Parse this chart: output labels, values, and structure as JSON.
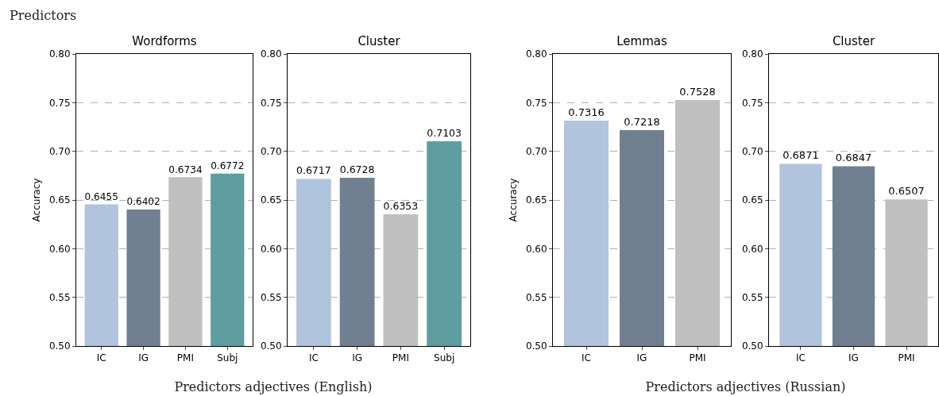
{
  "chart_data": [
    {
      "type": "bar",
      "title": "Wordforms",
      "ylabel": "Accuracy",
      "categories": [
        "IC",
        "IG",
        "PMI",
        "Subj"
      ],
      "values": [
        0.6455,
        0.6402,
        0.6734,
        0.6772
      ],
      "colors": [
        "#b0c4de",
        "#708090",
        "#c0c0c0",
        "#5f9ea0"
      ],
      "ylim": [
        0.5,
        0.8
      ],
      "yticks": [
        {
          "value": 0.5,
          "label": "0.50"
        },
        {
          "value": 0.55,
          "label": "0.55"
        },
        {
          "value": 0.6,
          "label": "0.60"
        },
        {
          "value": 0.65,
          "label": "0.65"
        },
        {
          "value": 0.7,
          "label": "0.70"
        },
        {
          "value": 0.75,
          "label": "0.75"
        },
        {
          "value": 0.8,
          "label": "0.80"
        }
      ],
      "grid": "y",
      "data_labels": true,
      "annotations": [
        "Predictors",
        "Predictors adjectives (English)"
      ]
    },
    {
      "type": "bar",
      "title": "Cluster",
      "categories": [
        "IC",
        "IG",
        "PMI",
        "Subj"
      ],
      "values": [
        0.6717,
        0.6728,
        0.6353,
        0.7103
      ],
      "colors": [
        "#b0c4de",
        "#708090",
        "#c0c0c0",
        "#5f9ea0"
      ],
      "ylim": [
        0.5,
        0.8
      ],
      "yticks": [
        {
          "value": 0.5,
          "label": "0.50"
        },
        {
          "value": 0.55,
          "label": "0.55"
        },
        {
          "value": 0.6,
          "label": "0.60"
        },
        {
          "value": 0.65,
          "label": "0.65"
        },
        {
          "value": 0.7,
          "label": "0.70"
        },
        {
          "value": 0.75,
          "label": "0.75"
        },
        {
          "value": 0.8,
          "label": "0.80"
        }
      ],
      "grid": "y",
      "data_labels": true
    },
    {
      "type": "bar",
      "title": "Lemmas",
      "ylabel": "Accuracy",
      "categories": [
        "IC",
        "IG",
        "PMI"
      ],
      "values": [
        0.7316,
        0.7218,
        0.7528
      ],
      "colors": [
        "#b0c4de",
        "#708090",
        "#c0c0c0"
      ],
      "ylim": [
        0.5,
        0.8
      ],
      "yticks": [
        {
          "value": 0.5,
          "label": "0.50"
        },
        {
          "value": 0.55,
          "label": "0.55"
        },
        {
          "value": 0.6,
          "label": "0.60"
        },
        {
          "value": 0.65,
          "label": "0.65"
        },
        {
          "value": 0.7,
          "label": "0.70"
        },
        {
          "value": 0.75,
          "label": "0.75"
        },
        {
          "value": 0.8,
          "label": "0.80"
        }
      ],
      "grid": "y",
      "data_labels": true,
      "annotations": [
        "Predictors adjectives (Russian)"
      ]
    },
    {
      "type": "bar",
      "title": "Cluster",
      "categories": [
        "IC",
        "IG",
        "PMI"
      ],
      "values": [
        0.6871,
        0.6847,
        0.6507
      ],
      "colors": [
        "#b0c4de",
        "#708090",
        "#c0c0c0"
      ],
      "ylim": [
        0.5,
        0.8
      ],
      "yticks": [
        {
          "value": 0.5,
          "label": "0.50"
        },
        {
          "value": 0.55,
          "label": "0.55"
        },
        {
          "value": 0.6,
          "label": "0.60"
        },
        {
          "value": 0.65,
          "label": "0.65"
        },
        {
          "value": 0.7,
          "label": "0.70"
        },
        {
          "value": 0.75,
          "label": "0.75"
        },
        {
          "value": 0.8,
          "label": "0.80"
        }
      ],
      "grid": "y",
      "data_labels": true
    }
  ]
}
